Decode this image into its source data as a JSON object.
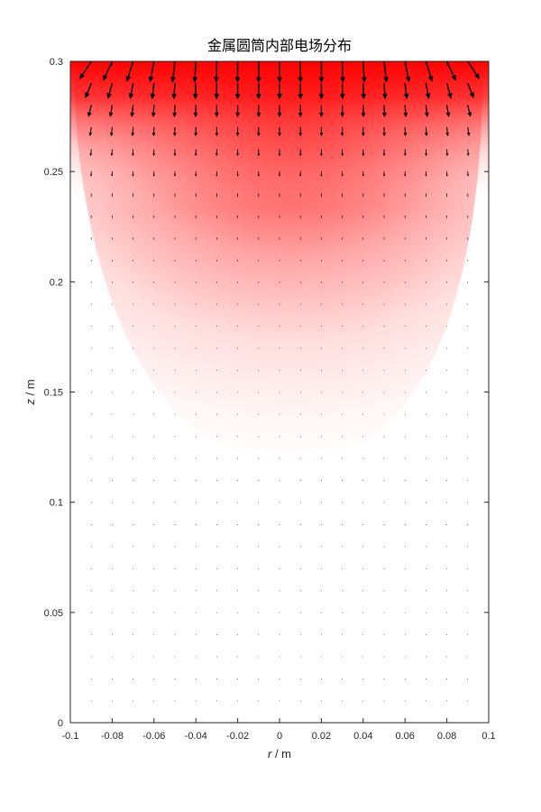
{
  "chart_data": {
    "type": "heatmap",
    "title": "金属圆筒内部电场分布",
    "xlabel_var": "r",
    "xlabel_unit": " / m",
    "ylabel_var": "z",
    "ylabel_unit": " / m",
    "xlim": [
      -0.1,
      0.1
    ],
    "ylim": [
      0,
      0.3
    ],
    "xticks": [
      -0.1,
      -0.08,
      -0.06,
      -0.04,
      -0.02,
      0,
      0.02,
      0.04,
      0.06,
      0.08,
      0.1
    ],
    "xtick_labels": [
      "-0.1",
      "-0.08",
      "-0.06",
      "-0.04",
      "-0.02",
      "0",
      "0.02",
      "0.04",
      "0.06",
      "0.08",
      "0.1"
    ],
    "yticks": [
      0,
      0.05,
      0.1,
      0.15,
      0.2,
      0.25,
      0.3
    ],
    "ytick_labels": [
      "0",
      "0.05",
      "0.1",
      "0.15",
      "0.2",
      "0.25",
      "0.3"
    ],
    "potential_colormap": [
      "#ffffff",
      "#ff0000"
    ],
    "potential_field": {
      "boundary_top_z": 0.3,
      "cylinder_radius": 0.1,
      "high_value_region": "top",
      "falloff_to_white_near_z": 0.12
    },
    "quiver": {
      "r_values": [
        -0.09,
        -0.08,
        -0.07,
        -0.06,
        -0.05,
        -0.04,
        -0.03,
        -0.02,
        -0.01,
        0,
        0.01,
        0.02,
        0.03,
        0.04,
        0.05,
        0.06,
        0.07,
        0.08,
        0.09
      ],
      "z_values": [
        0.01,
        0.02,
        0.03,
        0.04,
        0.05,
        0.06,
        0.07,
        0.08,
        0.09,
        0.1,
        0.11,
        0.12,
        0.13,
        0.14,
        0.15,
        0.16,
        0.17,
        0.18,
        0.19,
        0.2,
        0.21,
        0.22,
        0.23,
        0.24,
        0.25,
        0.26,
        0.27,
        0.28,
        0.29,
        0.3
      ],
      "arrow_color": "#000000",
      "direction": "pointing away from top plate (downward), tilted outward near walls"
    },
    "grid": false,
    "legend": "none"
  }
}
